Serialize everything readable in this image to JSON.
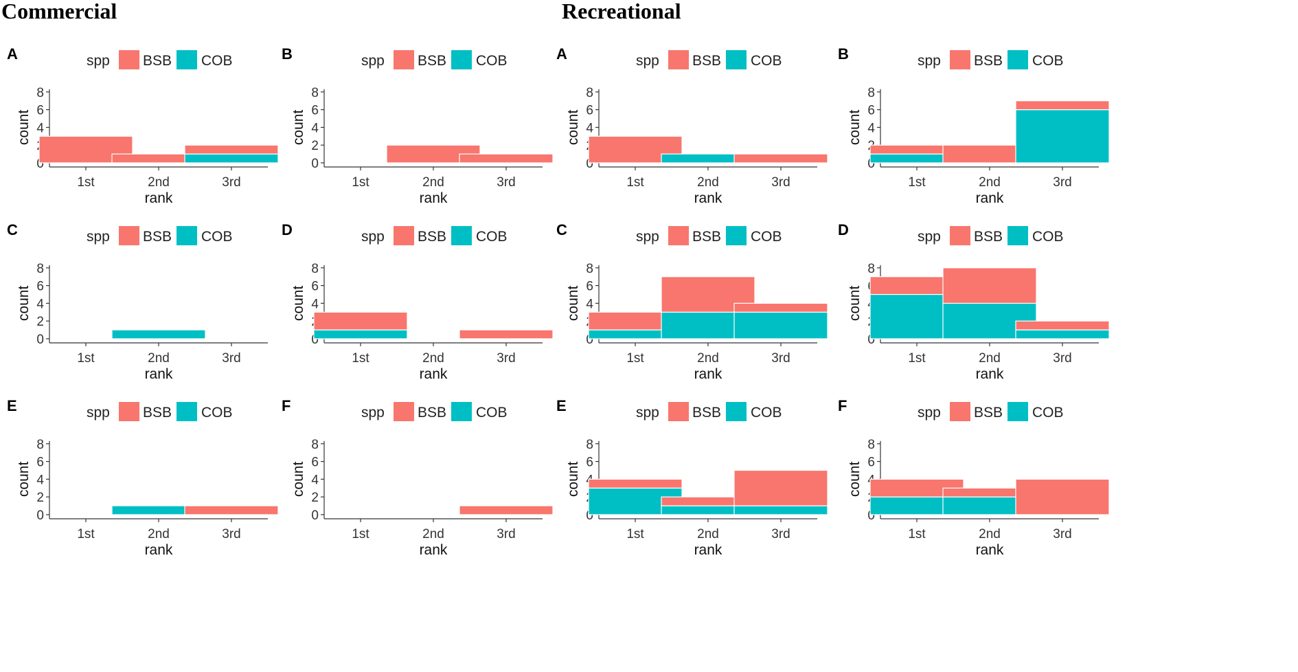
{
  "headings": {
    "commercial": "Commercial",
    "recreational": "Recreational"
  },
  "chart_data": [
    {
      "group": "Commercial",
      "panel": "A",
      "type": "bar",
      "stacked": true,
      "legend_title": "spp",
      "legend": [
        "BSB",
        "COB"
      ],
      "categories": [
        "1st",
        "2nd",
        "3rd"
      ],
      "series": [
        {
          "name": "BSB",
          "values": [
            3,
            1,
            1
          ]
        },
        {
          "name": "COB",
          "values": [
            0,
            0,
            1
          ]
        }
      ],
      "xlabel": "rank",
      "ylabel": "count",
      "ylim": [
        0,
        8
      ],
      "yticks": [
        0,
        2,
        4,
        6,
        8
      ]
    },
    {
      "group": "Commercial",
      "panel": "B",
      "type": "bar",
      "stacked": true,
      "legend_title": "spp",
      "legend": [
        "BSB",
        "COB"
      ],
      "categories": [
        "1st",
        "2nd",
        "3rd"
      ],
      "series": [
        {
          "name": "BSB",
          "values": [
            0,
            2,
            1
          ]
        },
        {
          "name": "COB",
          "values": [
            0,
            0,
            0
          ]
        }
      ],
      "xlabel": "rank",
      "ylabel": "count",
      "ylim": [
        0,
        8
      ],
      "yticks": [
        0,
        2,
        4,
        6,
        8
      ]
    },
    {
      "group": "Recreational",
      "panel": "A",
      "type": "bar",
      "stacked": true,
      "legend_title": "spp",
      "legend": [
        "BSB",
        "COB"
      ],
      "categories": [
        "1st",
        "2nd",
        "3rd"
      ],
      "series": [
        {
          "name": "BSB",
          "values": [
            3,
            0,
            1
          ]
        },
        {
          "name": "COB",
          "values": [
            0,
            1,
            0
          ]
        }
      ],
      "xlabel": "rank",
      "ylabel": "count",
      "ylim": [
        0,
        8
      ],
      "yticks": [
        0,
        2,
        4,
        6,
        8
      ]
    },
    {
      "group": "Recreational",
      "panel": "B",
      "type": "bar",
      "stacked": true,
      "legend_title": "spp",
      "legend": [
        "BSB",
        "COB"
      ],
      "categories": [
        "1st",
        "2nd",
        "3rd"
      ],
      "series": [
        {
          "name": "BSB",
          "values": [
            1,
            2,
            1
          ]
        },
        {
          "name": "COB",
          "values": [
            1,
            0,
            6
          ]
        }
      ],
      "xlabel": "rank",
      "ylabel": "count",
      "ylim": [
        0,
        8
      ],
      "yticks": [
        0,
        2,
        4,
        6,
        8
      ]
    },
    {
      "group": "Commercial",
      "panel": "C",
      "type": "bar",
      "stacked": true,
      "legend_title": "spp",
      "legend": [
        "BSB",
        "COB"
      ],
      "categories": [
        "1st",
        "2nd",
        "3rd"
      ],
      "series": [
        {
          "name": "BSB",
          "values": [
            0,
            0,
            0
          ]
        },
        {
          "name": "COB",
          "values": [
            0,
            1,
            0
          ]
        }
      ],
      "xlabel": "rank",
      "ylabel": "count",
      "ylim": [
        0,
        8
      ],
      "yticks": [
        0,
        2,
        4,
        6,
        8
      ]
    },
    {
      "group": "Commercial",
      "panel": "D",
      "type": "bar",
      "stacked": true,
      "legend_title": "spp",
      "legend": [
        "BSB",
        "COB"
      ],
      "categories": [
        "1st",
        "2nd",
        "3rd"
      ],
      "series": [
        {
          "name": "BSB",
          "values": [
            2,
            0,
            1
          ]
        },
        {
          "name": "COB",
          "values": [
            1,
            0,
            0
          ]
        }
      ],
      "xlabel": "rank",
      "ylabel": "count",
      "ylim": [
        0,
        8
      ],
      "yticks": [
        0,
        2,
        4,
        6,
        8
      ]
    },
    {
      "group": "Recreational",
      "panel": "C",
      "type": "bar",
      "stacked": true,
      "legend_title": "spp",
      "legend": [
        "BSB",
        "COB"
      ],
      "categories": [
        "1st",
        "2nd",
        "3rd"
      ],
      "series": [
        {
          "name": "BSB",
          "values": [
            2,
            4,
            1
          ]
        },
        {
          "name": "COB",
          "values": [
            1,
            3,
            3
          ]
        }
      ],
      "xlabel": "rank",
      "ylabel": "count",
      "ylim": [
        0,
        8
      ],
      "yticks": [
        0,
        2,
        4,
        6,
        8
      ]
    },
    {
      "group": "Recreational",
      "panel": "D",
      "type": "bar",
      "stacked": true,
      "legend_title": "spp",
      "legend": [
        "BSB",
        "COB"
      ],
      "categories": [
        "1st",
        "2nd",
        "3rd"
      ],
      "series": [
        {
          "name": "BSB",
          "values": [
            2,
            4,
            1
          ]
        },
        {
          "name": "COB",
          "values": [
            5,
            4,
            1
          ]
        }
      ],
      "xlabel": "rank",
      "ylabel": "count",
      "ylim": [
        0,
        8
      ],
      "yticks": [
        0,
        2,
        4,
        6,
        8
      ]
    },
    {
      "group": "Commercial",
      "panel": "E",
      "type": "bar",
      "stacked": true,
      "legend_title": "spp",
      "legend": [
        "BSB",
        "COB"
      ],
      "categories": [
        "1st",
        "2nd",
        "3rd"
      ],
      "series": [
        {
          "name": "BSB",
          "values": [
            0,
            0,
            1
          ]
        },
        {
          "name": "COB",
          "values": [
            0,
            1,
            0
          ]
        }
      ],
      "xlabel": "rank",
      "ylabel": "count",
      "ylim": [
        0,
        8
      ],
      "yticks": [
        0,
        2,
        4,
        6,
        8
      ]
    },
    {
      "group": "Commercial",
      "panel": "F",
      "type": "bar",
      "stacked": true,
      "legend_title": "spp",
      "legend": [
        "BSB",
        "COB"
      ],
      "categories": [
        "1st",
        "2nd",
        "3rd"
      ],
      "series": [
        {
          "name": "BSB",
          "values": [
            0,
            0,
            1
          ]
        },
        {
          "name": "COB",
          "values": [
            0,
            0,
            0
          ]
        }
      ],
      "xlabel": "rank",
      "ylabel": "count",
      "ylim": [
        0,
        8
      ],
      "yticks": [
        0,
        2,
        4,
        6,
        8
      ]
    },
    {
      "group": "Recreational",
      "panel": "E",
      "type": "bar",
      "stacked": true,
      "legend_title": "spp",
      "legend": [
        "BSB",
        "COB"
      ],
      "categories": [
        "1st",
        "2nd",
        "3rd"
      ],
      "series": [
        {
          "name": "BSB",
          "values": [
            1,
            1,
            4
          ]
        },
        {
          "name": "COB",
          "values": [
            3,
            1,
            1
          ]
        }
      ],
      "xlabel": "rank",
      "ylabel": "count",
      "ylim": [
        0,
        8
      ],
      "yticks": [
        0,
        2,
        4,
        6,
        8
      ]
    },
    {
      "group": "Recreational",
      "panel": "F",
      "type": "bar",
      "stacked": true,
      "legend_title": "spp",
      "legend": [
        "BSB",
        "COB"
      ],
      "categories": [
        "1st",
        "2nd",
        "3rd"
      ],
      "series": [
        {
          "name": "BSB",
          "values": [
            2,
            1,
            4
          ]
        },
        {
          "name": "COB",
          "values": [
            2,
            2,
            0
          ]
        }
      ],
      "xlabel": "rank",
      "ylabel": "count",
      "ylim": [
        0,
        8
      ],
      "yticks": [
        0,
        2,
        4,
        6,
        8
      ]
    }
  ],
  "colors": {
    "BSB": "#F8766D",
    "COB": "#00BFC4",
    "axis": "#333333"
  }
}
